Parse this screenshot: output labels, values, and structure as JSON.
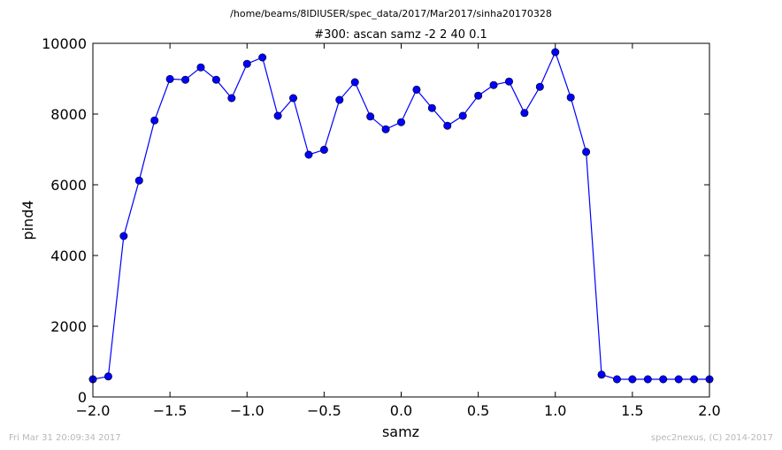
{
  "suptitle": "/home/beams/8IDIUSER/spec_data/2017/Mar2017/sinha20170328",
  "footer": {
    "timestamp": "Fri Mar 31 20:09:34 2017",
    "credit": "spec2nexus, (C) 2014-2017"
  },
  "colors": {
    "series": "#0000ff",
    "marker": "#0000ff",
    "axes": "#000000",
    "footer": "#b8b8b8"
  },
  "chart_data": {
    "type": "line",
    "title": "#300: ascan  samz -2 2  40 0.1",
    "xlabel": "samz",
    "ylabel": "pind4",
    "xlim": [
      -2.0,
      2.0
    ],
    "ylim": [
      0,
      10000
    ],
    "xticks": [
      -2.0,
      -1.5,
      -1.0,
      -0.5,
      0.0,
      0.5,
      1.0,
      1.5,
      2.0
    ],
    "xtick_labels": [
      "−2.0",
      "−1.5",
      "−1.0",
      "−0.5",
      "0.0",
      "0.5",
      "1.0",
      "1.5",
      "2.0"
    ],
    "yticks": [
      0,
      2000,
      4000,
      6000,
      8000,
      10000
    ],
    "ytick_labels": [
      "0",
      "2000",
      "4000",
      "6000",
      "8000",
      "10000"
    ],
    "grid": false,
    "markers": true,
    "x": [
      -2.0,
      -1.9,
      -1.8,
      -1.7,
      -1.6,
      -1.5,
      -1.4,
      -1.3,
      -1.2,
      -1.1,
      -1.0,
      -0.9,
      -0.8,
      -0.7,
      -0.6,
      -0.5,
      -0.4,
      -0.3,
      -0.2,
      -0.1,
      0.0,
      0.1,
      0.2,
      0.3,
      0.4,
      0.5,
      0.6,
      0.7,
      0.8,
      0.9,
      1.0,
      1.1,
      1.2,
      1.3,
      1.4,
      1.5,
      1.6,
      1.7,
      1.8,
      1.9,
      2.0
    ],
    "values": [
      500,
      580,
      4550,
      6120,
      7820,
      8990,
      8970,
      9320,
      8970,
      8450,
      9420,
      9600,
      7950,
      8450,
      6850,
      6990,
      8400,
      8900,
      7930,
      7570,
      7770,
      8690,
      8170,
      7670,
      7950,
      8520,
      8820,
      8920,
      8030,
      8770,
      9750,
      8470,
      6930,
      630,
      500,
      500,
      500,
      500,
      500,
      500,
      500
    ]
  }
}
